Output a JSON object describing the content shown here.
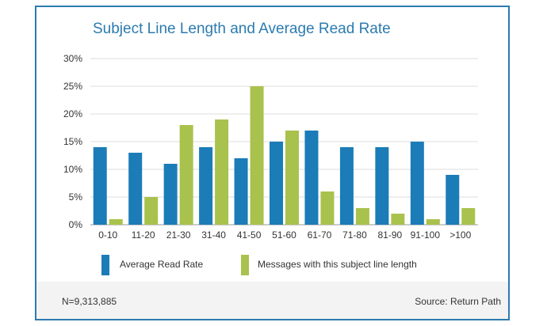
{
  "chart_data": {
    "type": "bar",
    "title": "Subject Line Length and Average Read Rate",
    "xlabel": "",
    "ylabel": "",
    "categories": [
      "0-10",
      "11-20",
      "21-30",
      "31-40",
      "41-50",
      "51-60",
      "61-70",
      "71-80",
      "81-90",
      "91-100",
      ">100"
    ],
    "series": [
      {
        "name": "Average Read Rate",
        "color": "#1b7cb8",
        "values": [
          14,
          13,
          11,
          14,
          12,
          15,
          17,
          14,
          14,
          15,
          9
        ]
      },
      {
        "name": "Messages with this subject line length",
        "color": "#a9c24d",
        "values": [
          1,
          5,
          18,
          19,
          25,
          17,
          6,
          3,
          2,
          1,
          3
        ]
      }
    ],
    "ylim": [
      0,
      30
    ],
    "yticks": [
      0,
      5,
      10,
      15,
      20,
      25,
      30
    ],
    "ytick_labels": [
      "0%",
      "5%",
      "10%",
      "15%",
      "20%",
      "25%",
      "30%"
    ],
    "grid": true,
    "legend_position": "bottom"
  },
  "footer": {
    "note": "N=9,313,885",
    "source": "Source: Return Path"
  }
}
